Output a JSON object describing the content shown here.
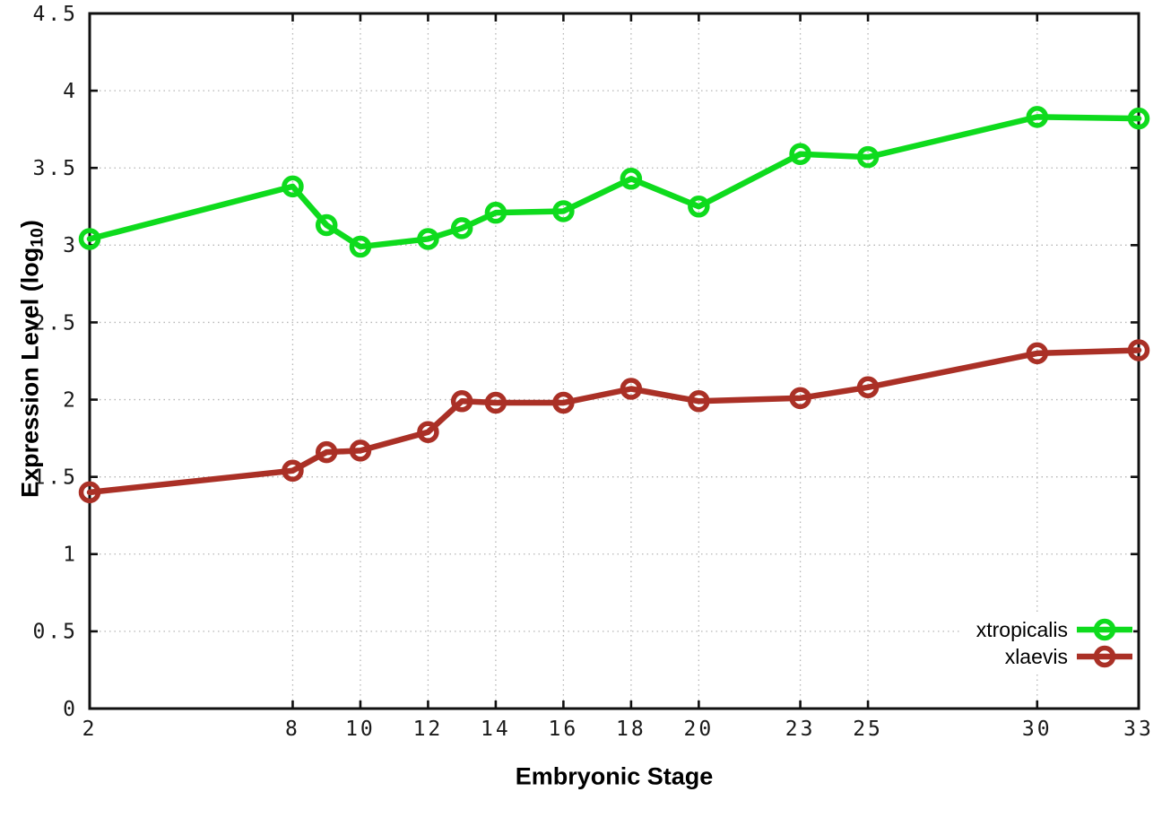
{
  "chart_data": {
    "type": "line",
    "x": [
      2,
      8,
      9,
      10,
      12,
      13,
      14,
      16,
      18,
      20,
      23,
      25,
      30,
      33
    ],
    "series": [
      {
        "name": "xtropicalis",
        "color": "#0edb1d",
        "values": [
          3.04,
          3.38,
          3.13,
          2.99,
          3.04,
          3.11,
          3.21,
          3.22,
          3.43,
          3.25,
          3.59,
          3.57,
          3.83,
          3.82
        ]
      },
      {
        "name": "xlaevis",
        "color": "#aa3026",
        "values": [
          1.4,
          1.54,
          1.66,
          1.67,
          1.79,
          1.99,
          1.98,
          1.98,
          2.07,
          1.99,
          2.01,
          2.08,
          2.3,
          2.32
        ]
      }
    ],
    "title": "",
    "xlabel": "Embryonic Stage",
    "ylabel": "Expression Level (log10)",
    "ylabel_parts": {
      "prefix": "Expression Level (log",
      "sub": "10",
      "suffix": ")"
    },
    "xlim": [
      2,
      33
    ],
    "ylim": [
      0,
      4.5
    ],
    "xticks": {
      "values": [
        2,
        8,
        10,
        12,
        14,
        16,
        18,
        20,
        23,
        25,
        30,
        33
      ],
      "labels": [
        "2",
        "8",
        "10",
        "12",
        "14",
        "16",
        "18",
        "20",
        "23",
        "25",
        "30",
        "33"
      ]
    },
    "yticks": {
      "values": [
        0,
        0.5,
        1,
        1.5,
        2,
        2.5,
        3,
        3.5,
        4,
        4.5
      ],
      "labels": [
        "0",
        "0.5",
        "1",
        "1.5",
        "2",
        "2.5",
        "3",
        "3.5",
        "4",
        "4.5"
      ]
    },
    "grid": true,
    "marker": "open-circle",
    "legend": {
      "position": "inside-bottom-right",
      "entries": [
        {
          "label": "xtropicalis",
          "color": "#0edb1d"
        },
        {
          "label": "xlaevis",
          "color": "#aa3026"
        }
      ]
    }
  },
  "colors": {
    "background": "#ffffff",
    "axis": "#101010",
    "grid": "#b5b5b5",
    "tick_text": "#1a1a1a",
    "xtropicalis": "#0edb1d",
    "xlaevis": "#aa3026"
  }
}
